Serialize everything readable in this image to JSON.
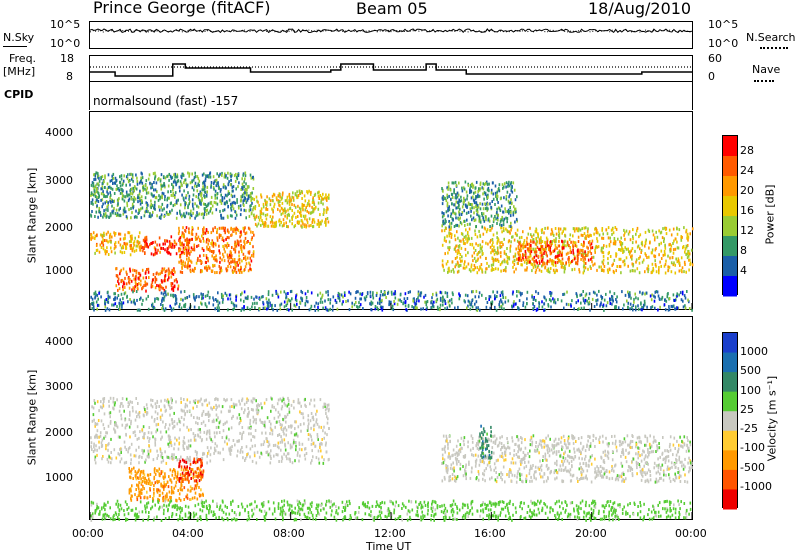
{
  "header": {
    "station": "Prince George (fitACF)",
    "beam": "Beam 05",
    "date": "18/Aug/2010"
  },
  "sky_panel": {
    "left_label": "N.Sky",
    "left_ticks": [
      "10^5",
      "10^0"
    ],
    "right_label": "N.Search",
    "right_ticks": [
      "10^5",
      "10^0"
    ]
  },
  "freq_panel": {
    "left_label_1": "Freq.",
    "left_label_2": "[MHz]",
    "left_ticks": [
      "18",
      "8"
    ],
    "right_label": "Nave",
    "right_ticks": [
      "60",
      "0"
    ]
  },
  "cpid": {
    "label": "CPID",
    "text": "normalsound (fast) -157"
  },
  "time_axis": {
    "label": "Time UT",
    "ticks": [
      "00:00",
      "04:00",
      "08:00",
      "12:00",
      "16:00",
      "20:00",
      "00:00"
    ]
  },
  "range_axis": {
    "label": "Slant Range [km]",
    "ticks": [
      "4000",
      "3000",
      "2000",
      "1000"
    ]
  },
  "power_colorbar": {
    "label": "Power [dB]",
    "ticks": [
      "28",
      "24",
      "20",
      "16",
      "12",
      "8",
      "4"
    ],
    "colors": [
      "#ff0000",
      "#ff5a00",
      "#ff9900",
      "#e8c800",
      "#99cc33",
      "#339966",
      "#1a5fa8",
      "#0000ff"
    ]
  },
  "velocity_colorbar": {
    "label": "Velocity [m s⁻¹]",
    "ticks": [
      "1000",
      "500",
      "100",
      "25",
      "-25",
      "-100",
      "-500",
      "-1000"
    ],
    "colors": [
      "#1a3fcc",
      "#1a6fb0",
      "#338866",
      "#55cc33",
      "#c8c8c0",
      "#ffcc33",
      "#ff9900",
      "#ff5500",
      "#ee0000"
    ]
  },
  "chart_data": {
    "type": "heatmap",
    "panels": [
      {
        "name": "Power",
        "units": "dB",
        "x_range_hours": [
          0,
          24
        ],
        "y_range_km": [
          180,
          4500
        ],
        "regions": [
          {
            "t": [
              0.0,
              2.0
            ],
            "r": [
              1400,
              1900
            ],
            "value": 18
          },
          {
            "t": [
              1.0,
              3.5
            ],
            "r": [
              600,
              1100
            ],
            "value": 24
          },
          {
            "t": [
              2.0,
              4.0
            ],
            "r": [
              1400,
              1800
            ],
            "value": 26
          },
          {
            "t": [
              3.5,
              6.5
            ],
            "r": [
              1000,
              2000
            ],
            "value": 22
          },
          {
            "t": [
              6.5,
              9.5
            ],
            "r": [
              2000,
              2800
            ],
            "value": 16
          },
          {
            "t": [
              0.0,
              6.5
            ],
            "r": [
              2200,
              3200
            ],
            "value": 8
          },
          {
            "t": [
              14.0,
              24.0
            ],
            "r": [
              1000,
              2000
            ],
            "value": 16
          },
          {
            "t": [
              17.0,
              20.0
            ],
            "r": [
              1200,
              1700
            ],
            "value": 24
          },
          {
            "t": [
              14.0,
              17.0
            ],
            "r": [
              2000,
              3000
            ],
            "value": 8
          },
          {
            "t": [
              0.0,
              24.0
            ],
            "r": [
              180,
              600
            ],
            "value": 6
          }
        ]
      },
      {
        "name": "Velocity",
        "units": "m s-1",
        "x_range_hours": [
          0,
          24
        ],
        "y_range_km": [
          180,
          4500
        ],
        "regions": [
          {
            "t": [
              0.0,
              9.5
            ],
            "r": [
              1400,
              2800
            ],
            "value": 0
          },
          {
            "t": [
              1.5,
              4.5
            ],
            "r": [
              600,
              1300
            ],
            "value": -300
          },
          {
            "t": [
              3.5,
              4.5
            ],
            "r": [
              1000,
              1500
            ],
            "value": -1000
          },
          {
            "t": [
              14.0,
              24.0
            ],
            "r": [
              1000,
              2000
            ],
            "value": 0
          },
          {
            "t": [
              15.5,
              16.0
            ],
            "r": [
              1500,
              2200
            ],
            "value": 300
          },
          {
            "t": [
              0.0,
              24.0
            ],
            "r": [
              180,
              600
            ],
            "value": 50
          }
        ]
      }
    ]
  }
}
